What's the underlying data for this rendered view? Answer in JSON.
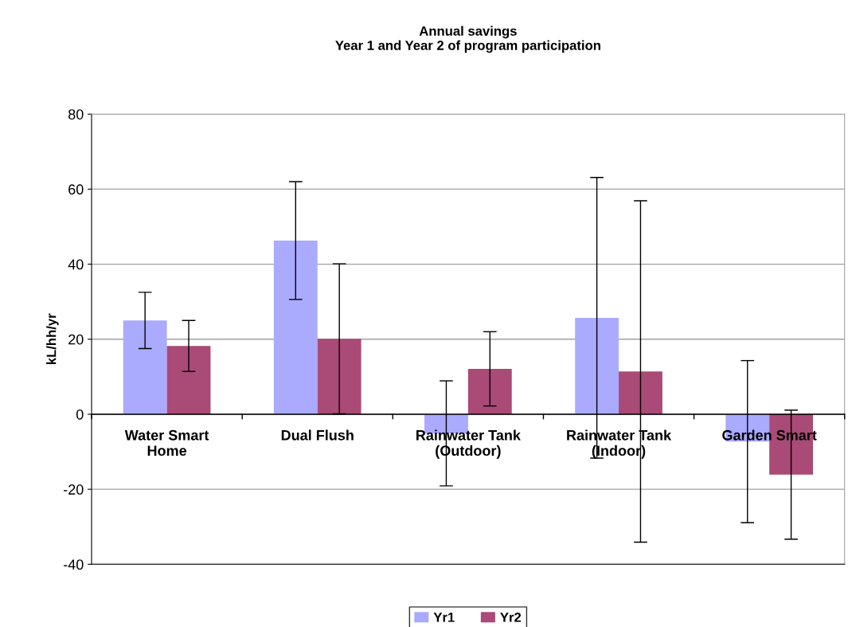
{
  "chart_data": {
    "type": "bar",
    "title": "Annual savings\nYear 1 and Year 2 of program participation",
    "ylabel": "kL/hh/yr",
    "categories": [
      "Water Smart\nHome",
      "Dual Flush",
      "Rainwater Tank\n(Outdoor)",
      "Rainwater Tank\n(Indoor)",
      "Garden Smart"
    ],
    "series": [
      {
        "name": "Yr1",
        "color": "#aaaaff",
        "values": [
          25.0,
          46.3,
          -5.1,
          25.7,
          -7.3
        ],
        "errors": [
          7.5,
          15.7,
          14,
          37.4,
          21.6
        ]
      },
      {
        "name": "Yr2",
        "color": "#aa4a76",
        "values": [
          18.2,
          20.1,
          12.1,
          11.4,
          -16.1
        ],
        "errors": [
          6.8,
          20,
          9.9,
          45.5,
          17.2
        ]
      }
    ],
    "ylim": [
      -40,
      80
    ],
    "yticks": [
      -40,
      -20,
      0,
      20,
      40,
      60,
      80
    ],
    "grid": "y",
    "legend": "bottom"
  }
}
